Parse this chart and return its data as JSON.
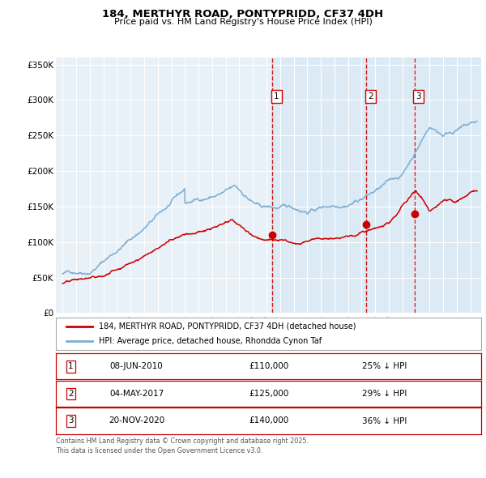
{
  "title": "184, MERTHYR ROAD, PONTYPRIDD, CF37 4DH",
  "subtitle": "Price paid vs. HM Land Registry's House Price Index (HPI)",
  "legend_line1": "184, MERTHYR ROAD, PONTYPRIDD, CF37 4DH (detached house)",
  "legend_line2": "HPI: Average price, detached house, Rhondda Cynon Taf",
  "footnote1": "Contains HM Land Registry data © Crown copyright and database right 2025.",
  "footnote2": "This data is licensed under the Open Government Licence v3.0.",
  "transactions": [
    {
      "label": "1",
      "date": "08-JUN-2010",
      "price": 110000,
      "hpi_pct": "25% ↓ HPI"
    },
    {
      "label": "2",
      "date": "04-MAY-2017",
      "price": 125000,
      "hpi_pct": "29% ↓ HPI"
    },
    {
      "label": "3",
      "date": "20-NOV-2020",
      "price": 140000,
      "hpi_pct": "36% ↓ HPI"
    }
  ],
  "transaction_dates_decimal": [
    2010.44,
    2017.34,
    2020.89
  ],
  "transaction_prices": [
    110000,
    125000,
    140000
  ],
  "vline_color": "#cc0000",
  "hpi_color": "#7bafd4",
  "price_color": "#cc0000",
  "marker_color": "#cc0000",
  "chart_bg_color": "#e8f0f8",
  "shade_color": "#d0e4f5",
  "ylim": [
    0,
    360000
  ],
  "xlim_start": 1994.5,
  "xlim_end": 2025.8,
  "yticks": [
    0,
    50000,
    100000,
    150000,
    200000,
    250000,
    300000,
    350000
  ],
  "ytick_labels": [
    "£0",
    "£50K",
    "£100K",
    "£150K",
    "£200K",
    "£250K",
    "£300K",
    "£350K"
  ],
  "xticks": [
    1995,
    1996,
    1997,
    1998,
    1999,
    2000,
    2001,
    2002,
    2003,
    2004,
    2005,
    2006,
    2007,
    2008,
    2009,
    2010,
    2011,
    2012,
    2013,
    2014,
    2015,
    2016,
    2017,
    2018,
    2019,
    2020,
    2021,
    2022,
    2023,
    2024,
    2025
  ]
}
